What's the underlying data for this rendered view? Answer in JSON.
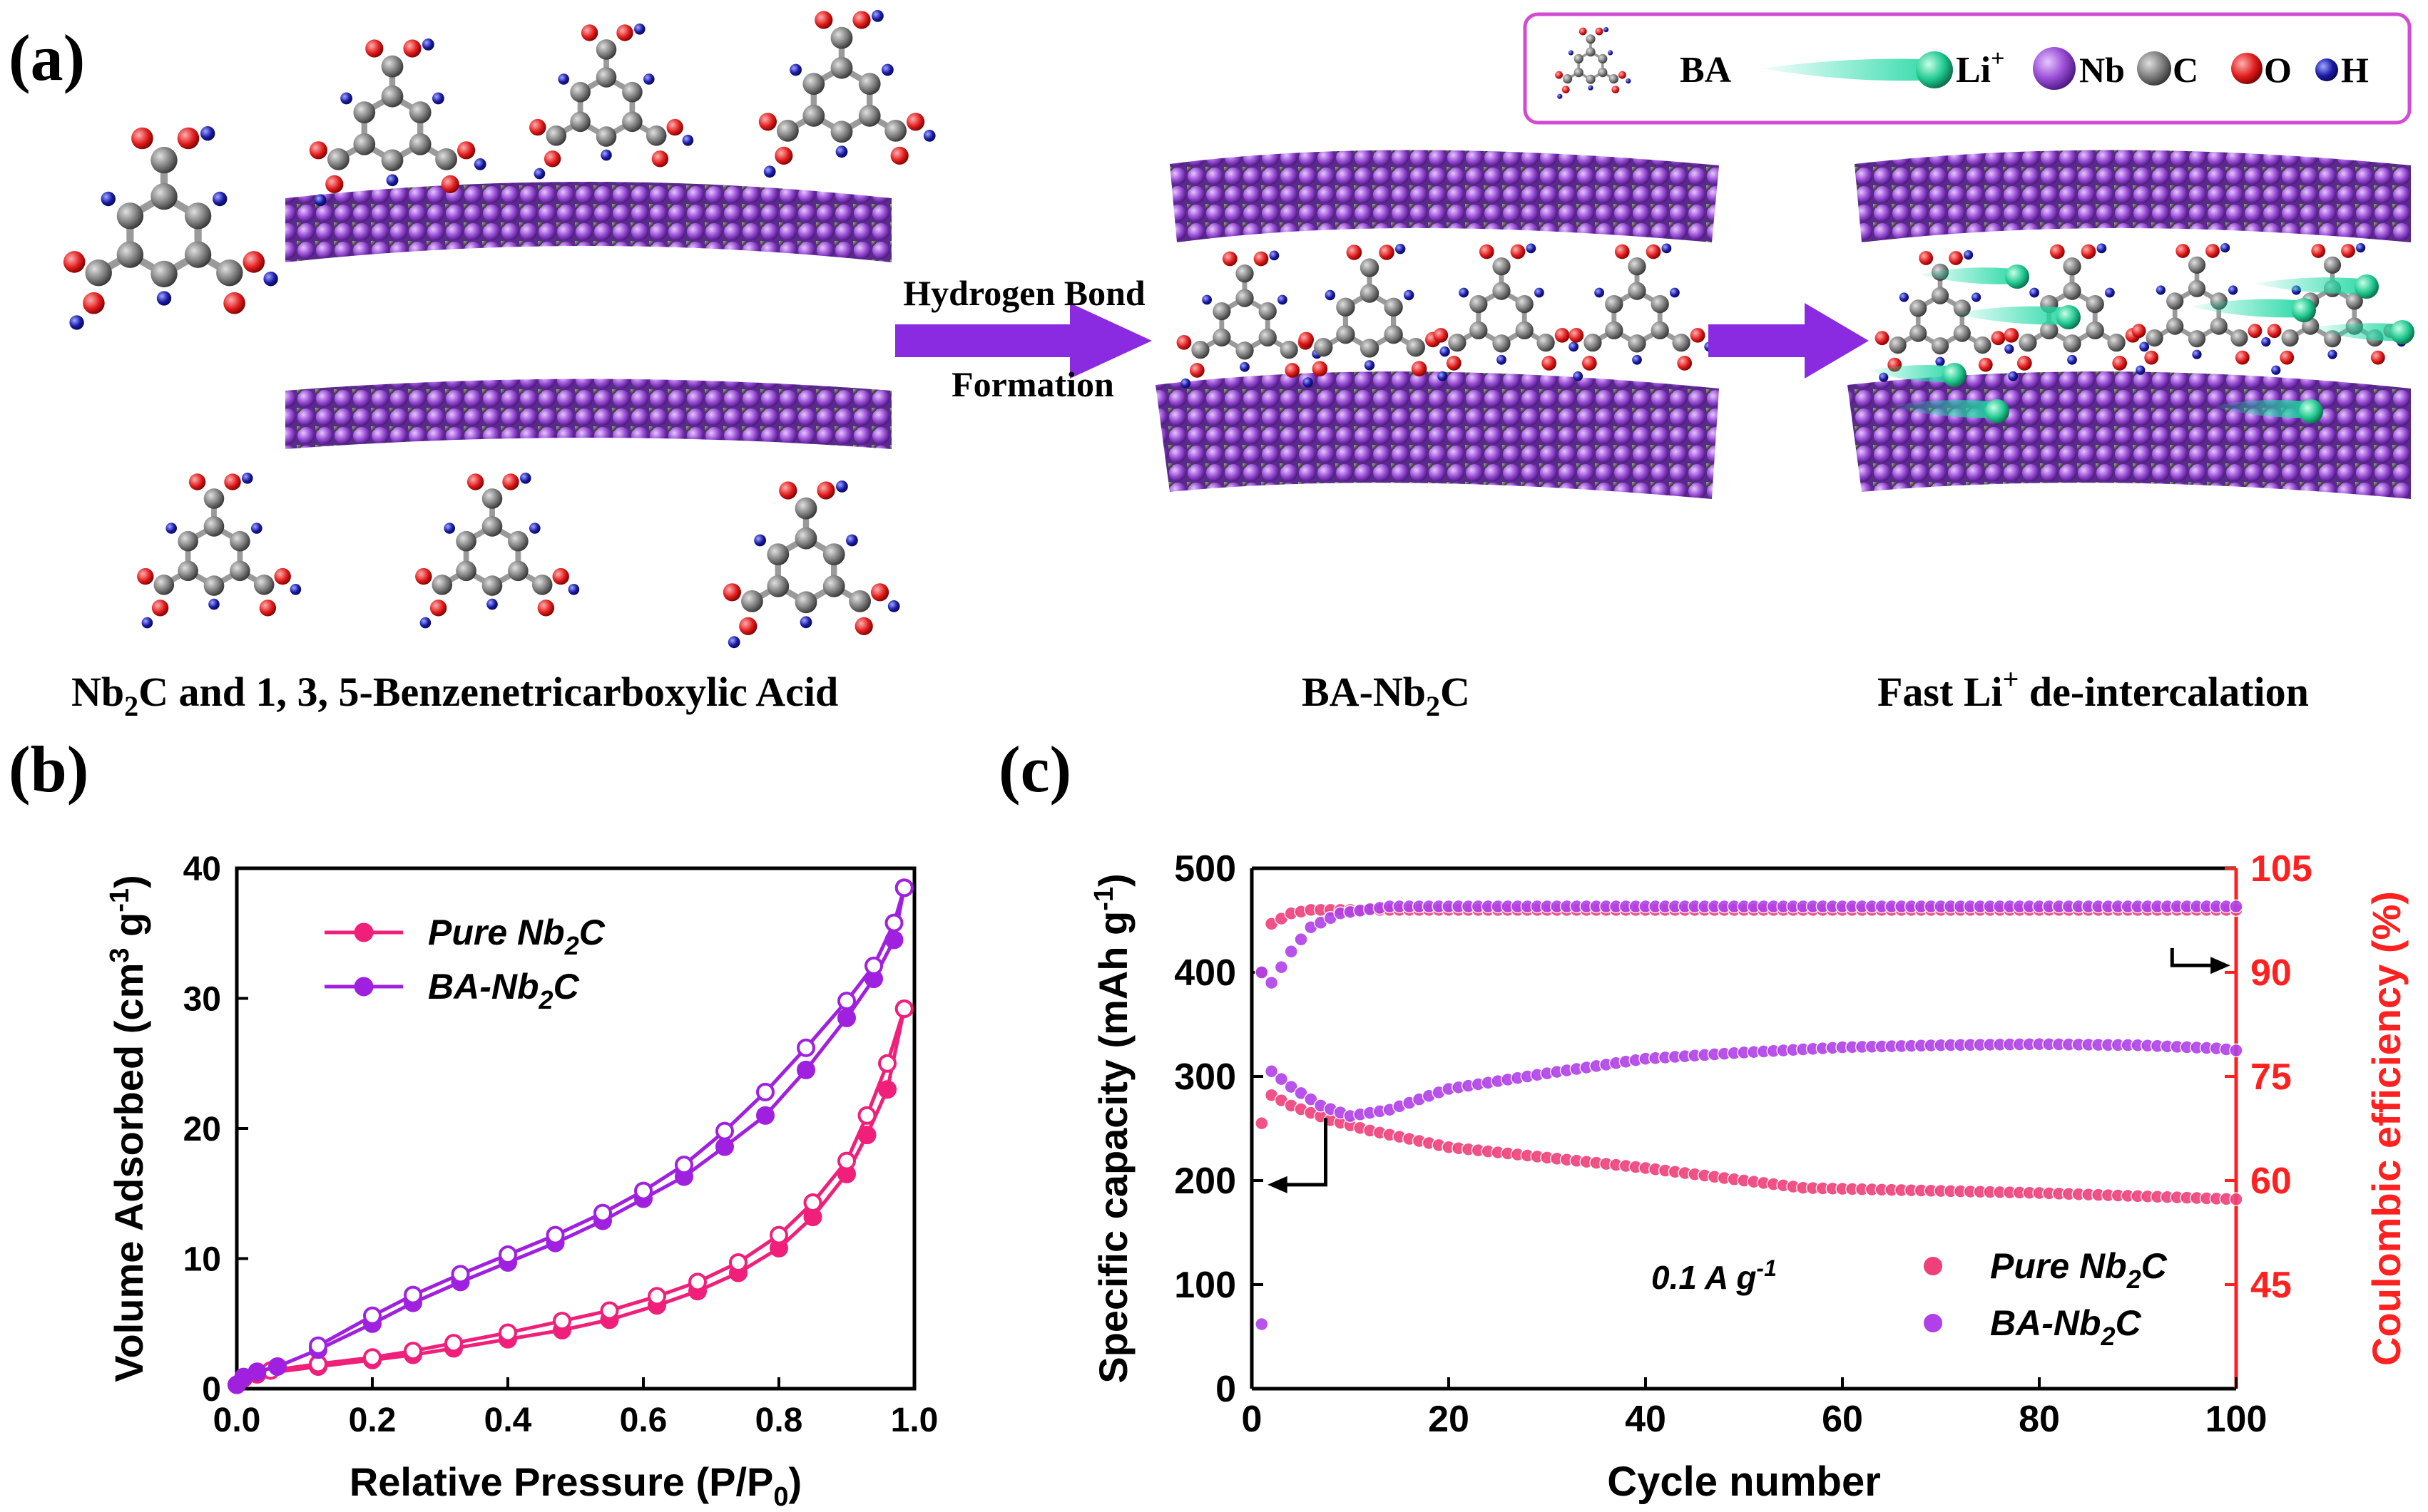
{
  "panel_a": {
    "label": "(a)",
    "legend": {
      "ba": "BA",
      "li": "Li",
      "li_sup": "+",
      "nb": "Nb",
      "c": "C",
      "o": "O",
      "h": "H"
    },
    "arrow1_line1": "Hydrogen Bond",
    "arrow1_line2": "Formation",
    "caption1_pre": "Nb",
    "caption1_sub": "2",
    "caption1_post": "C and 1, 3, 5-Benzenetricarboxylic Acid",
    "caption2_pre": "BA-Nb",
    "caption2_sub": "2",
    "caption2_post": "C",
    "caption3_pre": "Fast Li",
    "caption3_sup": "+",
    "caption3_post": " de-intercalation",
    "colors": {
      "nb": "#9b4fd6",
      "c": "#7a7a7a",
      "o": "#e01b1b",
      "h": "#1a1aa6",
      "li": "#20d6a0",
      "arrow": "#8a2be2",
      "legend_border": "#d24bd2"
    }
  },
  "chart_data": [
    {
      "panel": "(b)",
      "type": "line",
      "title": "",
      "xlabel_pre": "Relative Pressure (P/P",
      "xlabel_sub": "0",
      "xlabel_post": ")",
      "ylabel_pre": "Volume Adsorbed (cm",
      "ylabel_sup": "3",
      "ylabel_mid": " g",
      "ylabel_sup2": "-1",
      "ylabel_post": ")",
      "xlim": [
        0.0,
        1.0
      ],
      "ylim": [
        0,
        40
      ],
      "xticks": [
        "0.0",
        "0.2",
        "0.4",
        "0.6",
        "0.8",
        "1.0"
      ],
      "yticks": [
        "0",
        "10",
        "20",
        "30",
        "40"
      ],
      "legend_position": "top-left",
      "series": [
        {
          "name_pre": "Pure Nb",
          "name_sub": "2",
          "name_post": "C",
          "color": "#f0207a",
          "adsorption": [
            [
              0.0,
              0.3
            ],
            [
              0.01,
              0.8
            ],
            [
              0.03,
              1.1
            ],
            [
              0.12,
              1.7
            ],
            [
              0.2,
              2.2
            ],
            [
              0.26,
              2.6
            ],
            [
              0.32,
              3.1
            ],
            [
              0.4,
              3.8
            ],
            [
              0.48,
              4.5
            ],
            [
              0.55,
              5.3
            ],
            [
              0.62,
              6.4
            ],
            [
              0.68,
              7.5
            ],
            [
              0.74,
              8.9
            ],
            [
              0.8,
              10.8
            ],
            [
              0.85,
              13.2
            ],
            [
              0.9,
              16.5
            ],
            [
              0.93,
              19.5
            ],
            [
              0.96,
              23.0
            ],
            [
              0.985,
              29.2
            ]
          ],
          "desorption": [
            [
              0.985,
              29.2
            ],
            [
              0.96,
              25.0
            ],
            [
              0.93,
              21.0
            ],
            [
              0.9,
              17.5
            ],
            [
              0.85,
              14.3
            ],
            [
              0.8,
              11.8
            ],
            [
              0.74,
              9.7
            ],
            [
              0.68,
              8.2
            ],
            [
              0.62,
              7.1
            ],
            [
              0.55,
              6.0
            ],
            [
              0.48,
              5.2
            ],
            [
              0.4,
              4.3
            ],
            [
              0.32,
              3.5
            ],
            [
              0.26,
              2.9
            ],
            [
              0.2,
              2.4
            ],
            [
              0.12,
              1.9
            ],
            [
              0.05,
              1.4
            ]
          ]
        },
        {
          "name_pre": "BA-Nb",
          "name_sub": "2",
          "name_post": "C",
          "color": "#a020e0",
          "adsorption": [
            [
              0.0,
              0.3
            ],
            [
              0.01,
              0.9
            ],
            [
              0.03,
              1.3
            ],
            [
              0.06,
              1.7
            ],
            [
              0.12,
              3.0
            ],
            [
              0.2,
              5.0
            ],
            [
              0.26,
              6.6
            ],
            [
              0.33,
              8.2
            ],
            [
              0.4,
              9.7
            ],
            [
              0.47,
              11.2
            ],
            [
              0.54,
              12.9
            ],
            [
              0.6,
              14.6
            ],
            [
              0.66,
              16.3
            ],
            [
              0.72,
              18.6
            ],
            [
              0.78,
              21.0
            ],
            [
              0.84,
              24.5
            ],
            [
              0.9,
              28.5
            ],
            [
              0.94,
              31.5
            ],
            [
              0.97,
              34.5
            ],
            [
              0.985,
              38.5
            ]
          ],
          "desorption": [
            [
              0.985,
              38.5
            ],
            [
              0.97,
              35.8
            ],
            [
              0.94,
              32.5
            ],
            [
              0.9,
              29.8
            ],
            [
              0.84,
              26.2
            ],
            [
              0.78,
              22.8
            ],
            [
              0.72,
              19.8
            ],
            [
              0.66,
              17.2
            ],
            [
              0.6,
              15.2
            ],
            [
              0.54,
              13.5
            ],
            [
              0.47,
              11.8
            ],
            [
              0.4,
              10.3
            ],
            [
              0.33,
              8.8
            ],
            [
              0.26,
              7.2
            ],
            [
              0.2,
              5.6
            ],
            [
              0.12,
              3.3
            ]
          ]
        }
      ]
    },
    {
      "panel": "(c)",
      "type": "scatter",
      "title": "",
      "xlabel": "Cycle number",
      "ylabel_left_pre": "Specific capacity (mAh g",
      "ylabel_left_sup": "-1",
      "ylabel_left_post": ")",
      "ylabel_right": "Coulombic efficiency (%)",
      "xlim": [
        0,
        100
      ],
      "ylim_left": [
        0,
        500
      ],
      "ylim_right": [
        30,
        105
      ],
      "xticks": [
        "0",
        "20",
        "40",
        "60",
        "80",
        "100"
      ],
      "yticks_left": [
        "0",
        "100",
        "200",
        "300",
        "400",
        "500"
      ],
      "yticks_right": [
        "45",
        "60",
        "75",
        "90",
        "105"
      ],
      "annotation_pre": "0.1 A g",
      "annotation_sup": "-1",
      "legend_position": "bottom-right",
      "series": [
        {
          "name_pre": "Pure Nb",
          "name_sub": "2",
          "name_post": "C",
          "color": "#f0407a",
          "capacity_keypoints": [
            [
              1,
              255
            ],
            [
              2,
              282
            ],
            [
              4,
              272
            ],
            [
              8,
              258
            ],
            [
              12,
              248
            ],
            [
              20,
              232
            ],
            [
              30,
              222
            ],
            [
              40,
              212
            ],
            [
              50,
              200
            ],
            [
              56,
              193
            ],
            [
              60,
              192
            ],
            [
              70,
              190
            ],
            [
              80,
              188
            ],
            [
              90,
              185
            ],
            [
              100,
              182
            ]
          ],
          "efficiency_keypoints": [
            [
              1,
              90
            ],
            [
              2,
              97
            ],
            [
              4,
              98.5
            ],
            [
              6,
              99
            ],
            [
              10,
              99
            ],
            [
              100,
              99
            ]
          ]
        },
        {
          "name_pre": "BA-Nb",
          "name_sub": "2",
          "name_post": "C",
          "color": "#b040e8",
          "capacity_keypoints": [
            [
              1,
              62
            ],
            [
              2,
              305
            ],
            [
              4,
              290
            ],
            [
              7,
              272
            ],
            [
              10,
              262
            ],
            [
              14,
              268
            ],
            [
              20,
              288
            ],
            [
              30,
              303
            ],
            [
              40,
              317
            ],
            [
              50,
              323
            ],
            [
              60,
              328
            ],
            [
              70,
              330
            ],
            [
              80,
              331
            ],
            [
              90,
              330
            ],
            [
              98,
              327
            ],
            [
              100,
              325
            ]
          ],
          "efficiency_keypoints": [
            [
              1,
              90
            ],
            [
              2,
              88.5
            ],
            [
              4,
              93
            ],
            [
              6,
              96.5
            ],
            [
              9,
              98.5
            ],
            [
              14,
              99.5
            ],
            [
              20,
              99.5
            ],
            [
              100,
              99.5
            ]
          ]
        }
      ]
    }
  ]
}
